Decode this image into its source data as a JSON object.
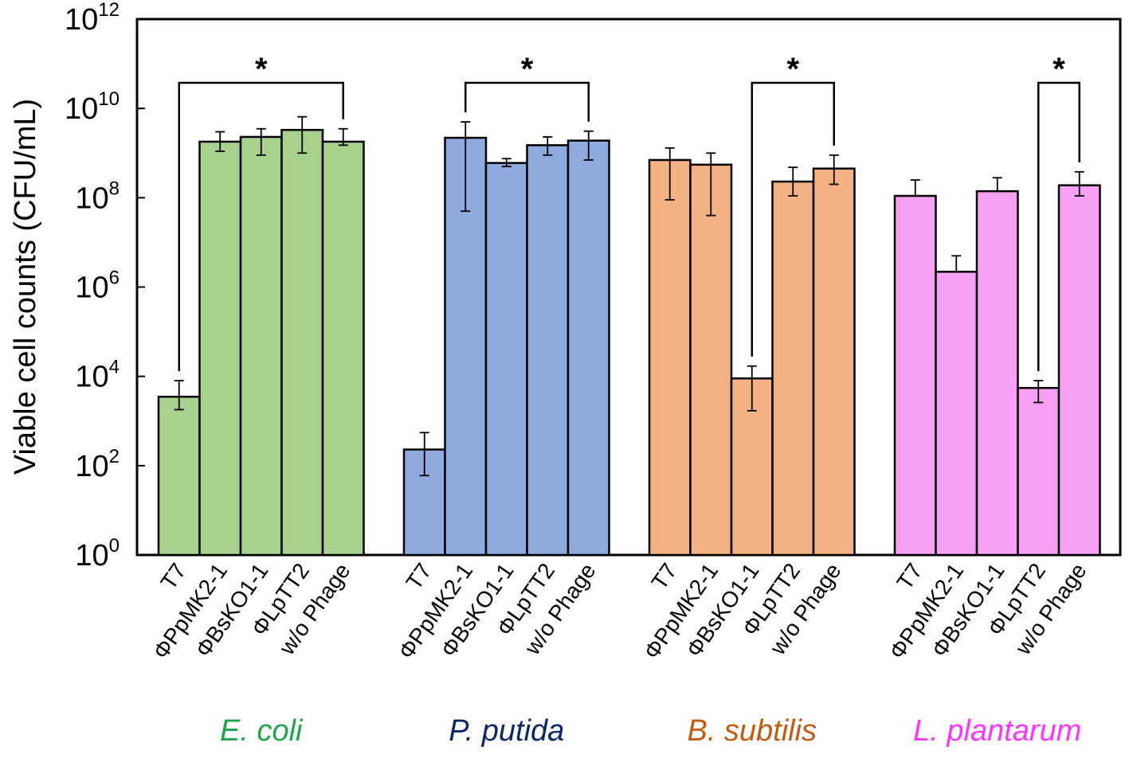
{
  "chart_data": {
    "type": "bar",
    "title": "",
    "xlabel": "",
    "ylabel": "Viable cell counts (CFU/mL)",
    "yscale": "log10",
    "ylim": [
      1,
      1000000000000
    ],
    "ytick_exponents": [
      0,
      2,
      4,
      6,
      8,
      10,
      12
    ],
    "ytick_base": "10",
    "grid": false,
    "categories": [
      "T7",
      "ΦPpMK2-1",
      "ΦBsKO1-1",
      "ΦLpTT2",
      "w/o Phage"
    ],
    "groups": [
      {
        "name": "E. coli",
        "color": "#a9d18e",
        "label_color": "#1fa54a",
        "values": [
          3500,
          1800000000,
          2300000000,
          3300000000,
          1800000000
        ],
        "err_low": [
          1800,
          1100000000,
          900000000,
          1000000000,
          1500000000
        ],
        "err_high": [
          8000,
          3000000000,
          3500000000,
          6500000000,
          3500000000
        ],
        "significance": {
          "from": 0,
          "to": 4,
          "label": "*"
        }
      },
      {
        "name": "P. putida",
        "color": "#8faadc",
        "label_color": "#0d2766",
        "values": [
          230,
          2200000000,
          600000000,
          1500000000,
          1900000000
        ],
        "err_low": [
          60,
          50000000,
          500000000,
          900000000,
          700000000
        ],
        "err_high": [
          550,
          5000000000,
          750000000,
          2300000000,
          3100000000
        ],
        "significance": {
          "from": 1,
          "to": 4,
          "label": "*"
        }
      },
      {
        "name": "B. subtilis",
        "color": "#f4b183",
        "label_color": "#c55a11",
        "values": [
          700000000,
          550000000,
          9000,
          230000000,
          450000000
        ],
        "err_low": [
          90000000,
          40000000,
          1700,
          110000000,
          200000000
        ],
        "err_high": [
          1300000000,
          1000000000,
          17000,
          480000000,
          900000000
        ],
        "significance": {
          "from": 2,
          "to": 4,
          "label": "*"
        }
      },
      {
        "name": "L. plantarum",
        "color": "#f8a0f3",
        "label_color": "#ff33ff",
        "values": [
          110000000,
          2200000,
          140000000,
          5500,
          190000000
        ],
        "err_low": [
          110000000,
          2200000,
          140000000,
          2600,
          110000000
        ],
        "err_high": [
          250000000,
          5000000,
          280000000,
          8000,
          380000000
        ],
        "significance": {
          "from": 3,
          "to": 4,
          "label": "*"
        }
      }
    ]
  }
}
